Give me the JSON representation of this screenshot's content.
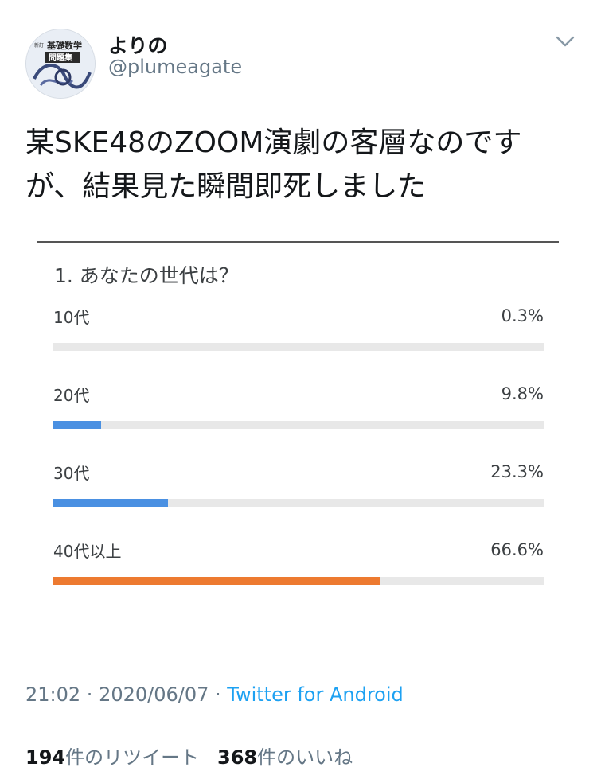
{
  "author": {
    "display_name": "よりの",
    "handle": "@plumeagate",
    "avatar_text_small": "新訂",
    "avatar_text_title": "基礎数学",
    "avatar_text_sub": "問題集"
  },
  "tweet": {
    "text": "某SKE48のZOOM演劇の客層なのですが、結果見た瞬間即死しました"
  },
  "poll": {
    "question": "1. あなたの世代は？",
    "options": [
      {
        "label": "10代",
        "percent_text": "0.3%",
        "value": 0.3,
        "color": "#e8e8e8"
      },
      {
        "label": "20代",
        "percent_text": "9.8%",
        "value": 9.8,
        "color": "#4a90e2"
      },
      {
        "label": "30代",
        "percent_text": "23.3%",
        "value": 23.3,
        "color": "#4a90e2"
      },
      {
        "label": "40代以上",
        "percent_text": "66.6%",
        "value": 66.6,
        "color": "#ed7a30"
      }
    ]
  },
  "meta": {
    "time": "21:02",
    "sep": " · ",
    "date": "2020/06/07",
    "source": "Twitter for Android"
  },
  "stats": {
    "retweets_count": "194",
    "retweets_label": "件のリツイート",
    "likes_count": "368",
    "likes_label": "件のいいね"
  },
  "colors": {
    "link": "#1da1f2",
    "secondary_text": "#657786",
    "bar_blue": "#4a90e2",
    "bar_orange": "#ed7a30"
  }
}
